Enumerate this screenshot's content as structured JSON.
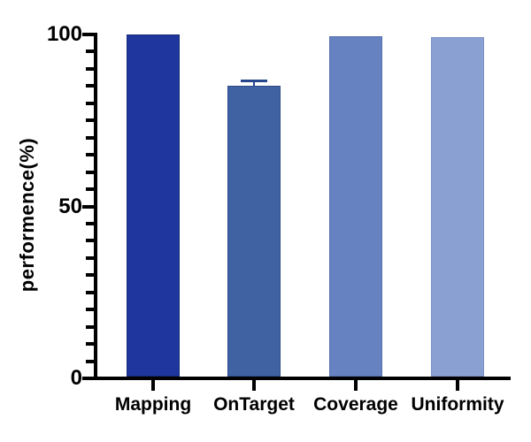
{
  "figure": {
    "background": "#ffffff"
  },
  "chart_data": {
    "type": "bar",
    "title": "",
    "xlabel": "",
    "ylabel": "performence(%)",
    "categories": [
      "Mapping",
      "OnTarget",
      "Coverage",
      "Uniformity"
    ],
    "values": [
      100,
      85,
      99.5,
      99.3
    ],
    "errors": [
      0,
      1.5,
      0,
      0
    ],
    "error_style": "upper-whisker-with-cap",
    "bar_colors": [
      "#1e369d",
      "#4062a3",
      "#6682c1",
      "#8ba0d2"
    ],
    "bar_border_colors": [
      "#172b77",
      "#2e4b8c",
      "#5471ae",
      "#7b91c4"
    ],
    "error_color": "#26478e",
    "axis_color": "#000000",
    "text_color": "#000000",
    "ylim": [
      0,
      100
    ],
    "yticks": [
      0,
      50,
      100
    ],
    "minor_tick_step": 5,
    "grid": false,
    "legend": null
  }
}
